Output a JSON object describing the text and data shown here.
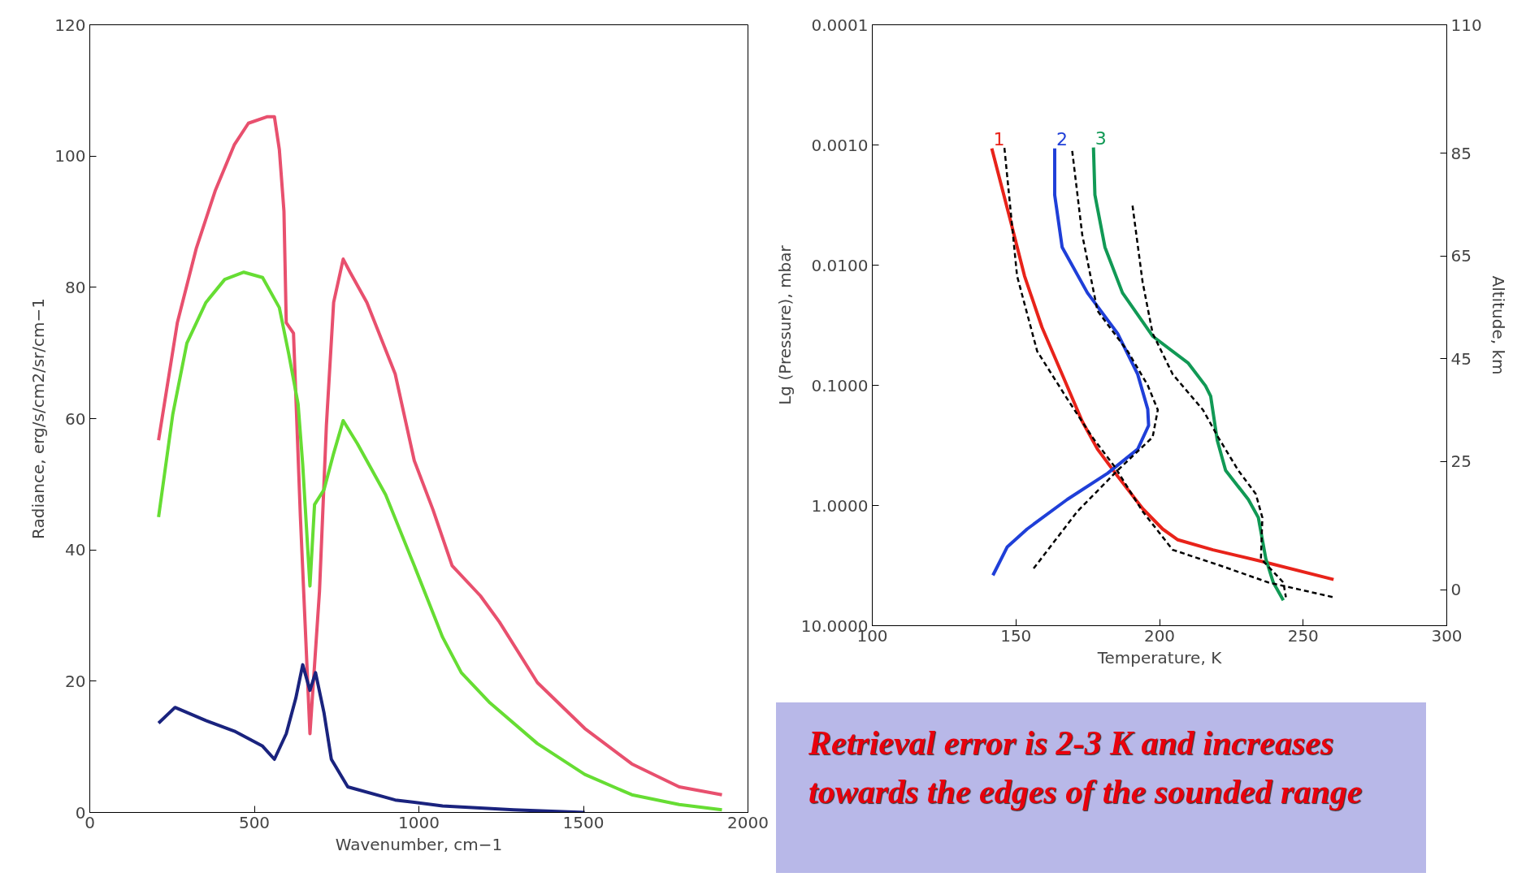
{
  "chart_data": [
    {
      "type": "line",
      "xlabel": "Wavenumber, cm−1",
      "ylabel": "Radiance, erg/s/cm2/sr/cm−1",
      "xlim": [
        0,
        2000
      ],
      "ylim": [
        0,
        120
      ],
      "xticks": [
        0,
        500,
        1000,
        1500,
        2000
      ],
      "yticks": [
        0,
        20,
        40,
        60,
        80,
        100,
        120
      ],
      "grid": false,
      "line_style": "solid",
      "series": [
        {
          "color": "#e8506e",
          "x": [
            209,
            266,
            324,
            381,
            439,
            482,
            540,
            561,
            576,
            590,
            597,
            619,
            640,
            669,
            698,
            719,
            741,
            770,
            791,
            842,
            928,
            986,
            1043,
            1101,
            1187,
            1245,
            1360,
            1504,
            1647,
            1791,
            1921
          ],
          "values": [
            56.7,
            74.6,
            86,
            94.7,
            101.7,
            105,
            106,
            106,
            101,
            91.6,
            74.6,
            73,
            45,
            12,
            33.7,
            59,
            77.7,
            84.3,
            82.3,
            77.7,
            66.8,
            53.6,
            46.1,
            37.6,
            33,
            29,
            19.8,
            12.8,
            7.4,
            3.9,
            2.7
          ]
        },
        {
          "color": "#66dd33",
          "x": [
            209,
            252,
            295,
            353,
            410,
            468,
            525,
            576,
            604,
            633,
            647,
            669,
            683,
            712,
            741,
            770,
            813,
            899,
            986,
            1072,
            1129,
            1216,
            1360,
            1504,
            1647,
            1791,
            1921
          ],
          "values": [
            45,
            60.6,
            71.5,
            77.7,
            81.2,
            82.3,
            81.5,
            76.9,
            70,
            62.2,
            53,
            34.5,
            46.9,
            49.2,
            54.7,
            59.7,
            56.2,
            48.4,
            37.6,
            26.7,
            21.3,
            16.7,
            10.5,
            5.8,
            2.7,
            1.2,
            0.4
          ]
        },
        {
          "color": "#1a237e",
          "x": [
            209,
            259,
            353,
            439,
            525,
            561,
            597,
            626,
            647,
            669,
            686,
            712,
            734,
            784,
            928,
            1072,
            1288,
            1504
          ],
          "values": [
            13.6,
            16,
            14,
            12.4,
            10.1,
            8.1,
            12,
            17.4,
            22.5,
            18.6,
            21.3,
            15.1,
            8.1,
            3.9,
            1.9,
            1,
            0.4,
            0
          ]
        }
      ]
    },
    {
      "type": "line",
      "xlabel": "Temperature, K",
      "ylabel": "Lg (Pressure), mbar",
      "y2label": "Altitude, km",
      "log": "y",
      "grid": false,
      "line_style": "solid",
      "xlim": [
        100,
        300
      ],
      "ylim": [
        10,
        0.0001
      ],
      "y2lim": [
        -7,
        110
      ],
      "xticks": [
        100,
        150,
        200,
        250,
        300
      ],
      "yticks": [
        {
          "value": 0.0001,
          "label": "0.0001"
        },
        {
          "value": 0.001,
          "label": "0.0010"
        },
        {
          "value": 0.01,
          "label": "0.0100"
        },
        {
          "value": 0.1,
          "label": "0.1000"
        },
        {
          "value": 1,
          "label": "1.0000"
        },
        {
          "value": 10,
          "label": "10.0000"
        }
      ],
      "y2ticks": [
        0,
        25,
        45,
        65,
        85,
        110
      ],
      "series": [
        {
          "name": "1",
          "color": "#e8231a",
          "x": [
            141.6,
            147.8,
            153.0,
            159.1,
            166.1,
            173.1,
            178.4,
            185.4,
            194.1,
            201.1,
            206.4,
            218.6,
            236.1,
            260.6
          ],
          "values": [
            0.00107,
            0.004,
            0.0123,
            0.033,
            0.081,
            0.2,
            0.34,
            0.57,
            1.06,
            1.57,
            1.93,
            2.34,
            2.94,
            4.13
          ]
        },
        {
          "name": "2",
          "color": "#1f3fd8",
          "x": [
            163.5,
            163.5,
            166.1,
            174.9,
            185.4,
            192.4,
            195.9,
            196.2,
            192.4,
            181.9,
            167.9,
            153.9,
            147.0,
            142.0
          ],
          "values": [
            0.00107,
            0.0026,
            0.0071,
            0.017,
            0.037,
            0.081,
            0.158,
            0.216,
            0.34,
            0.54,
            0.89,
            1.57,
            2.21,
            3.81
          ]
        },
        {
          "name": "3",
          "color": "#119955",
          "x": [
            177.0,
            177.5,
            181.0,
            187.1,
            197.6,
            209.9,
            216.0,
            217.8,
            220.1,
            223.0,
            230.9,
            234.4,
            237.0,
            239.6,
            243.1
          ],
          "values": [
            0.00105,
            0.0026,
            0.0071,
            0.017,
            0.039,
            0.065,
            0.101,
            0.123,
            0.287,
            0.51,
            0.89,
            1.26,
            2.77,
            4.37,
            6.14
          ]
        },
        {
          "color": "#000000",
          "line_style": "dashed",
          "x": [
            146.0,
            150.4,
            157.4,
            167.9,
            176.6,
            184.5,
            194.1,
            204.6,
            220.3,
            237.9,
            260.6
          ],
          "values": [
            0.00106,
            0.0123,
            0.052,
            0.13,
            0.27,
            0.48,
            1.12,
            2.34,
            3.11,
            4.37,
            5.8
          ]
        },
        {
          "color": "#000000",
          "line_style": "dashed",
          "x": [
            169.6,
            173.1,
            178.4,
            188.9,
            195.9,
            199.4,
            197.6,
            185.4,
            171.4,
            155.6
          ],
          "values": [
            0.00112,
            0.0056,
            0.024,
            0.052,
            0.1,
            0.16,
            0.27,
            0.51,
            1.12,
            3.48
          ]
        },
        {
          "color": "#000000",
          "line_style": "dashed",
          "x": [
            190.6,
            194.1,
            197.6,
            204.6,
            215.1,
            220.4,
            227.4,
            233.5,
            235.8,
            235.3,
            243.1,
            244.0
          ],
          "values": [
            0.0032,
            0.0138,
            0.037,
            0.081,
            0.16,
            0.27,
            0.51,
            0.8,
            1.26,
            2.77,
            4.37,
            5.8
          ]
        }
      ],
      "annotations": [
        "Retrieval error is 2-3 K and increases towards the edges of the sounded range"
      ]
    }
  ]
}
